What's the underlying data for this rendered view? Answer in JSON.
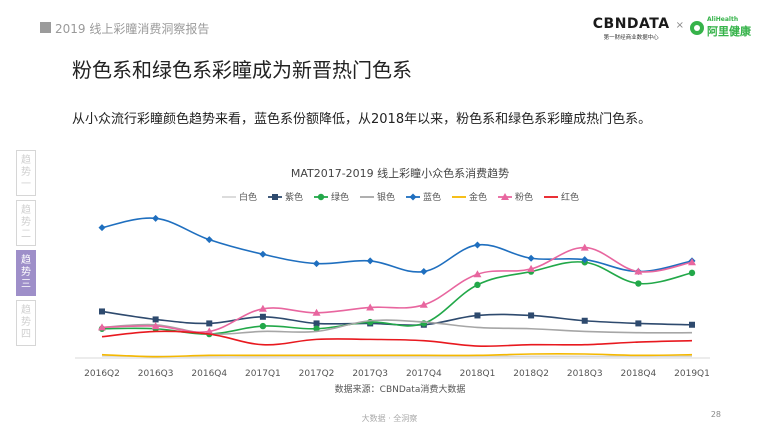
{
  "header": {
    "report_title": "2019 线上彩瞳消费洞察报告"
  },
  "brand": {
    "cbn_name": "CBNDATA",
    "cbn_sub": "第一财经商业数据中心",
    "cross": "×",
    "ali_en": "AliHealth",
    "ali_cn": "阿里健康"
  },
  "page_title": "粉色系和绿色系彩瞳成为新晋热门色系",
  "subtitle": "从小众流行彩瞳颜色趋势来看，蓝色系份额降低，从2018年以来，粉色系和绿色系彩瞳成热门色系。",
  "side_tabs": [
    {
      "chars": [
        "趋",
        "势",
        "一"
      ],
      "active": false
    },
    {
      "chars": [
        "趋",
        "势",
        "二"
      ],
      "active": false
    },
    {
      "chars": [
        "趋",
        "势",
        "三"
      ],
      "active": true
    },
    {
      "chars": [
        "趋",
        "势",
        "四"
      ],
      "active": false
    }
  ],
  "chart_data": {
    "type": "line",
    "title": "MAT2017-2019 线上彩瞳小众色系消费趋势",
    "categories": [
      "2016Q2",
      "2016Q3",
      "2016Q4",
      "2017Q1",
      "2017Q2",
      "2017Q3",
      "2017Q4",
      "2018Q1",
      "2018Q2",
      "2018Q3",
      "2018Q4",
      "2019Q1"
    ],
    "ylim": [
      0,
      100
    ],
    "grid": false,
    "legend": "top",
    "series": [
      {
        "name": "白色",
        "color": "#d9d9d9",
        "marker": "none",
        "values": [
          1.5,
          1.2,
          1.2,
          1.2,
          1.3,
          1.3,
          1.3,
          1.3,
          1.3,
          1.3,
          1.3,
          1.3
        ]
      },
      {
        "name": "紫色",
        "color": "#2e4a6e",
        "marker": "square",
        "values": [
          35,
          29,
          26,
          31,
          26,
          26,
          25,
          32,
          32,
          28,
          26,
          25
        ]
      },
      {
        "name": "绿色",
        "color": "#22a849",
        "marker": "circle",
        "values": [
          22,
          22,
          18,
          24,
          22,
          27,
          26,
          55,
          65,
          72,
          56,
          64
        ]
      },
      {
        "name": "银色",
        "color": "#a6a6a6",
        "marker": "none",
        "values": [
          23,
          25,
          18,
          20,
          20,
          28,
          27,
          23,
          22,
          20,
          19,
          19
        ]
      },
      {
        "name": "蓝色",
        "color": "#1f6fbf",
        "marker": "diamond",
        "values": [
          98,
          105,
          89,
          78,
          71,
          73,
          65,
          85,
          75,
          74,
          65,
          73
        ]
      },
      {
        "name": "金色",
        "color": "#f5b800",
        "marker": "none",
        "values": [
          2.5,
          1,
          2,
          2,
          2,
          2,
          2,
          2,
          3,
          3,
          2,
          2.5
        ]
      },
      {
        "name": "粉色",
        "color": "#e8669f",
        "marker": "triangle",
        "values": [
          23,
          24,
          20,
          37,
          34,
          38,
          40,
          63,
          67,
          83,
          65,
          72
        ]
      },
      {
        "name": "红色",
        "color": "#e8191f",
        "marker": "none",
        "values": [
          16,
          20,
          18,
          10,
          14,
          14,
          13,
          9,
          10,
          10,
          12,
          13
        ]
      }
    ],
    "source": "数据来源：CBNData消费大数据"
  },
  "footer": {
    "text": "大数据 · 全洞察",
    "page_number": "28"
  }
}
